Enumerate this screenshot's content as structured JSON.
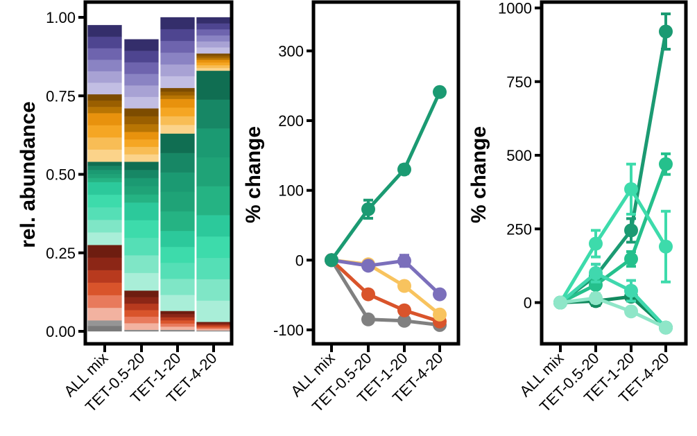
{
  "categories": [
    "ALL mix",
    "TET-0.5-20",
    "TET-1-20",
    "TET-4-20"
  ],
  "chart_data": [
    {
      "type": "bar",
      "stacked": true,
      "ylabel": "rel. abundance",
      "ylim": [
        0,
        1.0
      ],
      "yticks": [
        0.0,
        0.25,
        0.5,
        0.75,
        1.0
      ],
      "ytick_labels": [
        "0.00",
        "0.25",
        "0.50",
        "0.75",
        "1.00"
      ],
      "categories": [
        "ALL mix",
        "TET-0.5-20",
        "TET-1-20",
        "TET-4-20"
      ],
      "groups": [
        {
          "name": "grey",
          "color": "#8a8a8a",
          "shades": [
            "#7a7a7a",
            "#959595"
          ],
          "values": [
            0.035,
            0.005,
            0.005,
            0.003
          ]
        },
        {
          "name": "red-orange",
          "color": "#d9542b",
          "shades": [
            "#f2b2a0",
            "#e87a5c",
            "#d9542b",
            "#b83a1e",
            "#8c2616",
            "#6e1d10"
          ],
          "values": [
            0.24,
            0.125,
            0.06,
            0.027
          ]
        },
        {
          "name": "teal-light",
          "color": "#3ddbab",
          "shades": [
            "#a9eed8",
            "#7fe6c6",
            "#55dfb6",
            "#3ddbab",
            "#2cc99b"
          ],
          "values": [
            0.2,
            0.28,
            0.255,
            0.34
          ]
        },
        {
          "name": "green-dark",
          "color": "#1b9a72",
          "shades": [
            "#25b383",
            "#1fa377",
            "#1b9a72",
            "#178765",
            "#106e52"
          ],
          "values": [
            0.065,
            0.13,
            0.31,
            0.46
          ]
        },
        {
          "name": "orange",
          "color": "#f5a623",
          "shades": [
            "#fbd38a",
            "#f8bd55",
            "#f5a623",
            "#e8920d"
          ],
          "values": [
            0.155,
            0.095,
            0.11,
            0.035
          ]
        },
        {
          "name": "brown",
          "color": "#9a5f00",
          "shades": [
            "#b87503",
            "#9a5f00",
            "#7d4c00"
          ],
          "values": [
            0.06,
            0.075,
            0.035,
            0.02
          ]
        },
        {
          "name": "purple",
          "color": "#6e64ae",
          "shades": [
            "#c2bee3",
            "#a8a2d4",
            "#8a83c3",
            "#6e64ae",
            "#4e4590",
            "#342e6b"
          ],
          "values": [
            0.22,
            0.22,
            0.225,
            0.115
          ]
        }
      ]
    },
    {
      "type": "line",
      "ylabel": "% change",
      "ylim": [
        -120,
        370
      ],
      "yticks": [
        -100,
        0,
        100,
        200,
        300
      ],
      "ytick_labels": [
        "-100",
        "0",
        "100",
        "200",
        "300"
      ],
      "categories": [
        "ALL mix",
        "TET-0.5-20",
        "TET-1-20",
        "TET-4-20"
      ],
      "series": [
        {
          "name": "grey",
          "color": "#808080",
          "values": [
            0,
            -85,
            -87,
            -93
          ],
          "errors": [
            0,
            4,
            4,
            3
          ]
        },
        {
          "name": "red-orange",
          "color": "#d9542b",
          "values": [
            0,
            -49,
            -72,
            -88
          ],
          "errors": [
            0,
            4,
            4,
            3
          ]
        },
        {
          "name": "orange",
          "color": "#f8c35e",
          "values": [
            0,
            -6,
            -37,
            -78
          ],
          "errors": [
            0,
            4,
            5,
            4
          ]
        },
        {
          "name": "purple",
          "color": "#7b6fbb",
          "values": [
            0,
            -8,
            -1,
            -49
          ],
          "errors": [
            0,
            5,
            8,
            4
          ]
        },
        {
          "name": "green",
          "color": "#1b9a72",
          "values": [
            0,
            73,
            130,
            241
          ],
          "errors": [
            0,
            13,
            6,
            5
          ]
        }
      ]
    },
    {
      "type": "line",
      "ylabel": "% change",
      "ylim": [
        -140,
        1020
      ],
      "yticks": [
        0,
        250,
        500,
        750,
        1000
      ],
      "ytick_labels": [
        "0",
        "250",
        "500",
        "750",
        "1000"
      ],
      "categories": [
        "ALL mix",
        "TET-0.5-20",
        "TET-1-20",
        "TET-4-20"
      ],
      "series": [
        {
          "name": "dark green",
          "color": "#128a5e",
          "values": [
            0,
            5,
            20,
            -85
          ],
          "errors": [
            0,
            15,
            15,
            10
          ]
        },
        {
          "name": "green",
          "color": "#1b9a72",
          "values": [
            0,
            90,
            245,
            920
          ],
          "errors": [
            0,
            40,
            40,
            60
          ]
        },
        {
          "name": "mint",
          "color": "#25c08c",
          "values": [
            0,
            60,
            148,
            470
          ],
          "errors": [
            0,
            30,
            25,
            35
          ]
        },
        {
          "name": "light teal",
          "color": "#3ddbab",
          "values": [
            0,
            200,
            385,
            190
          ],
          "errors": [
            0,
            45,
            85,
            120
          ]
        },
        {
          "name": "aqua",
          "color": "#40d8ae",
          "values": [
            0,
            100,
            40,
            -85
          ],
          "errors": [
            0,
            30,
            35,
            10
          ]
        },
        {
          "name": "pale teal",
          "color": "#8fe6c8",
          "values": [
            0,
            15,
            -30,
            -85
          ],
          "errors": [
            0,
            15,
            10,
            10
          ]
        }
      ]
    }
  ]
}
